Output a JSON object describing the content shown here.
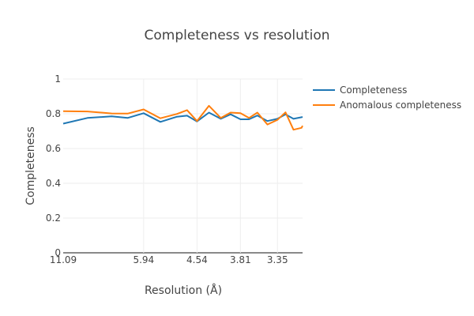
{
  "chart_data": {
    "type": "line",
    "title": "Completeness vs resolution",
    "xlabel": "Resolution (Å)",
    "ylabel": "Completeness",
    "ylim": [
      0,
      1
    ],
    "yticks": [
      "0",
      "0.2",
      "0.4",
      "0.6",
      "0.8",
      "1"
    ],
    "yticks_values": [
      0,
      0.2,
      0.4,
      0.6,
      0.8,
      1
    ],
    "xtick_labels": [
      "11.09",
      "5.94",
      "4.54",
      "3.81",
      "3.35"
    ],
    "xtick_values": [
      0.0902,
      0.1684,
      0.2203,
      0.2625,
      0.2985
    ],
    "xlim": [
      0.0902,
      0.3229
    ],
    "x": [
      0.0902,
      0.1138,
      0.1373,
      0.1528,
      0.1684,
      0.1847,
      0.2009,
      0.2106,
      0.2203,
      0.2319,
      0.2434,
      0.2529,
      0.2625,
      0.2708,
      0.279,
      0.2887,
      0.2985,
      0.3063,
      0.3141,
      0.3219,
      0.3229
    ],
    "series": [
      {
        "name": "Completeness",
        "color": "#1f77b4",
        "values": [
          0.743,
          0.776,
          0.785,
          0.776,
          0.803,
          0.753,
          0.783,
          0.789,
          0.756,
          0.807,
          0.771,
          0.797,
          0.768,
          0.768,
          0.79,
          0.758,
          0.771,
          0.797,
          0.771,
          0.78,
          0.782
        ]
      },
      {
        "name": "Anomalous completeness",
        "color": "#ff7f0e",
        "values": [
          0.815,
          0.813,
          0.802,
          0.801,
          0.825,
          0.774,
          0.799,
          0.821,
          0.758,
          0.846,
          0.776,
          0.807,
          0.803,
          0.776,
          0.807,
          0.738,
          0.765,
          0.808,
          0.708,
          0.719,
          0.731
        ]
      }
    ],
    "legend_position": "top-right",
    "grid": true
  }
}
